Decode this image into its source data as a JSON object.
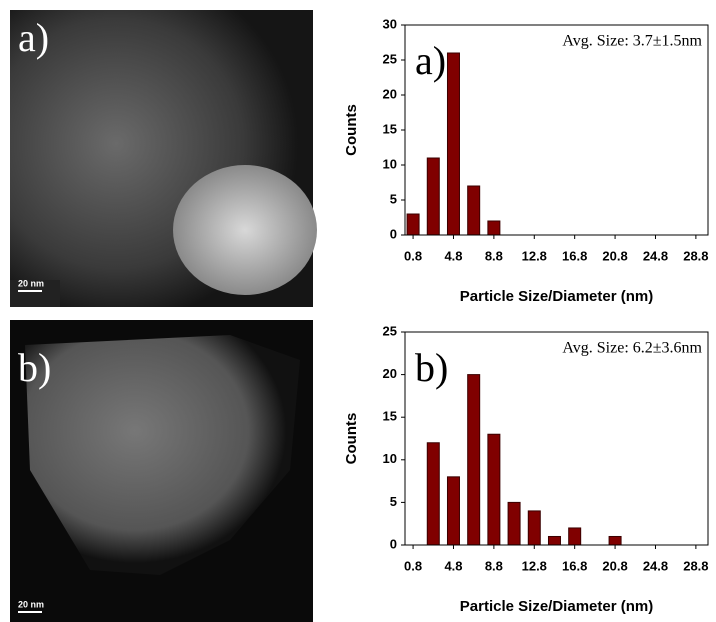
{
  "images": [
    {
      "label": "a)",
      "scale_bar": "20 nm"
    },
    {
      "label": "b)",
      "scale_bar": "20 nm"
    }
  ],
  "chart_data": [
    {
      "type": "bar",
      "panel_label": "a)",
      "annotation": "Avg. Size: 3.7±1.5nm",
      "x_label": "Particle Size/Diameter (nm)",
      "y_label": "Counts",
      "x": [
        0.8,
        2.8,
        4.8,
        6.8,
        8.8
      ],
      "values": [
        3,
        11,
        26,
        7,
        2
      ],
      "color": "#800000",
      "xlim": [
        0,
        30
      ],
      "xticks": [
        0.8,
        4.8,
        8.8,
        12.8,
        16.8,
        20.8,
        24.8,
        28.8
      ],
      "ylim": [
        0,
        30
      ],
      "yticks": [
        0,
        5,
        10,
        15,
        20,
        25,
        30
      ]
    },
    {
      "type": "bar",
      "panel_label": "b)",
      "annotation": "Avg. Size: 6.2±3.6nm",
      "x_label": "Particle Size/Diameter (nm)",
      "y_label": "Counts",
      "x": [
        2.8,
        4.8,
        6.8,
        8.8,
        10.8,
        12.8,
        14.8,
        16.8,
        20.8
      ],
      "values": [
        12,
        8,
        20,
        13,
        5,
        4,
        1,
        2,
        1
      ],
      "color": "#800000",
      "xlim": [
        0,
        30
      ],
      "xticks": [
        0.8,
        4.8,
        8.8,
        12.8,
        16.8,
        20.8,
        24.8,
        28.8
      ],
      "ylim": [
        0,
        25
      ],
      "yticks": [
        0,
        5,
        10,
        15,
        20,
        25
      ]
    }
  ]
}
